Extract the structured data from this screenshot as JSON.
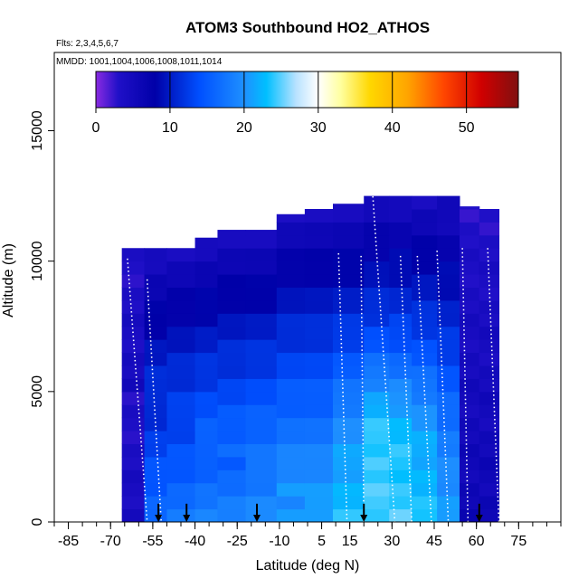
{
  "chart_data": {
    "type": "heatmap",
    "title": "ATOM3 Southbound HO2_ATHOS",
    "flights_label": "Flts: 2,3,4,5,6,7",
    "dates_label": "MMDD: 1001,1004,1006,1008,1011,1014",
    "xlabel": "Latitude (deg N)",
    "ylabel": "Altitude (m)",
    "xlim": [
      -90,
      90
    ],
    "ylim": [
      0,
      18000
    ],
    "x_ticks": [
      -85,
      -70,
      -55,
      -40,
      -25,
      -10,
      5,
      15,
      30,
      45,
      60,
      75
    ],
    "x_tick_labels": [
      "-85",
      "-70",
      "-55",
      "-40",
      "-25",
      "-10",
      "5",
      "15",
      "30",
      "45",
      "60",
      "75"
    ],
    "y_ticks": [
      0,
      5000,
      10000,
      15000
    ],
    "y_tick_labels": [
      "0",
      "5000",
      "10000",
      "15000"
    ],
    "colorbar": {
      "range": [
        0,
        57
      ],
      "ticks": [
        0,
        10,
        20,
        30,
        40,
        50
      ],
      "tick_labels": [
        "0",
        "10",
        "20",
        "30",
        "40",
        "50"
      ],
      "stops": [
        {
          "v": 0,
          "color": "#8a2be2"
        },
        {
          "v": 3,
          "color": "#2010c8"
        },
        {
          "v": 8,
          "color": "#0000a8"
        },
        {
          "v": 14,
          "color": "#0050ff"
        },
        {
          "v": 20,
          "color": "#1e90ff"
        },
        {
          "v": 23,
          "color": "#00bfff"
        },
        {
          "v": 27,
          "color": "#b8e2ff"
        },
        {
          "v": 30,
          "color": "#ffffff"
        },
        {
          "v": 33,
          "color": "#ffffa0"
        },
        {
          "v": 37,
          "color": "#ffd700"
        },
        {
          "v": 42,
          "color": "#ffa500"
        },
        {
          "v": 47,
          "color": "#ff4500"
        },
        {
          "v": 52,
          "color": "#d00000"
        },
        {
          "v": 57,
          "color": "#801010"
        }
      ]
    },
    "arrows_lat": [
      -53,
      -43,
      -18,
      20,
      61
    ],
    "columns": [
      {
        "lat": [
          -66,
          -58
        ],
        "top": 10500,
        "base": 17,
        "peak": 0,
        "dark": true
      },
      {
        "lat": [
          -58,
          -50
        ],
        "top": 10500,
        "base": 18,
        "peak": 0,
        "dark": false
      },
      {
        "lat": [
          -50,
          -40
        ],
        "top": 10500,
        "base": 19,
        "peak": 0,
        "dark": false
      },
      {
        "lat": [
          -40,
          -32
        ],
        "top": 10900,
        "base": 20,
        "peak": 0,
        "dark": false
      },
      {
        "lat": [
          -32,
          -22
        ],
        "top": 11200,
        "base": 20,
        "peak": 0,
        "dark": false
      },
      {
        "lat": [
          -22,
          -11
        ],
        "top": 11200,
        "base": 21,
        "peak": 0,
        "dark": false
      },
      {
        "lat": [
          -11,
          -1
        ],
        "top": 11800,
        "base": 22,
        "peak": 0,
        "dark": false
      },
      {
        "lat": [
          -1,
          9
        ],
        "top": 12000,
        "base": 22,
        "peak": 0,
        "dark": false
      },
      {
        "lat": [
          9,
          20
        ],
        "top": 12200,
        "base": 23,
        "peak": 2,
        "dark": false
      },
      {
        "lat": [
          20,
          29
        ],
        "top": 12500,
        "base": 24,
        "peak": 5,
        "dark": false
      },
      {
        "lat": [
          29,
          37
        ],
        "top": 12500,
        "base": 24,
        "peak": 4,
        "dark": false
      },
      {
        "lat": [
          37,
          46
        ],
        "top": 12500,
        "base": 23,
        "peak": 3,
        "dark": false
      },
      {
        "lat": [
          46,
          54
        ],
        "top": 12500,
        "base": 21,
        "peak": 1,
        "dark": false
      },
      {
        "lat": [
          54,
          61
        ],
        "top": 12100,
        "base": 17,
        "peak": 0,
        "dark": true
      },
      {
        "lat": [
          61,
          68
        ],
        "top": 12000,
        "base": 16,
        "peak": 0,
        "dark": true
      }
    ],
    "profiles": [
      {
        "lat_top": -64,
        "lat_bottom": -57,
        "top": 10100
      },
      {
        "lat_top": -57,
        "lat_bottom": -52,
        "top": 9300
      },
      {
        "lat_top": 11,
        "lat_bottom": 14,
        "top": 10300
      },
      {
        "lat_top": 19,
        "lat_bottom": 20,
        "top": 10200
      },
      {
        "lat_top": 23,
        "lat_bottom": 31,
        "top": 12800
      },
      {
        "lat_top": 33,
        "lat_bottom": 37,
        "top": 10200
      },
      {
        "lat_top": 39,
        "lat_bottom": 44,
        "top": 10200
      },
      {
        "lat_top": 46,
        "lat_bottom": 50,
        "top": 10400
      },
      {
        "lat_top": 55,
        "lat_bottom": 57,
        "top": 10500
      },
      {
        "lat_top": 64,
        "lat_bottom": 68,
        "top": 10500
      }
    ]
  }
}
